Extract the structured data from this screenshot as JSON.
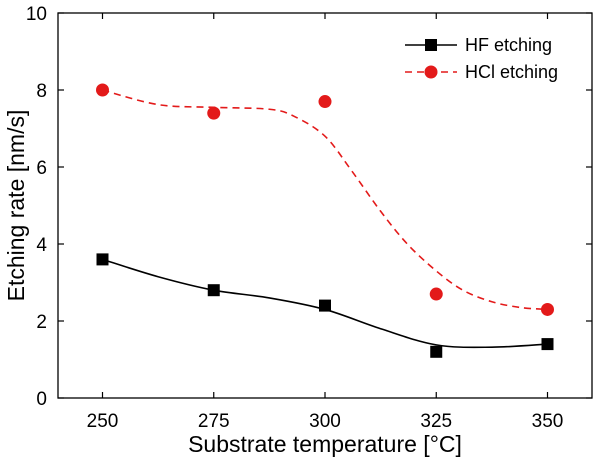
{
  "chart_data": {
    "type": "line",
    "title": "",
    "xlabel": "Substrate temperature [°C]",
    "ylabel": "Etching rate [nm/s]",
    "xlim": [
      240,
      360
    ],
    "ylim": [
      0,
      10
    ],
    "xticks": [
      250,
      275,
      300,
      325,
      350
    ],
    "yticks": [
      0,
      2,
      4,
      6,
      8,
      10
    ],
    "grid": false,
    "legend_position": "top-right",
    "series": [
      {
        "name": "HF etching",
        "color": "#000000",
        "marker": "square",
        "line_style": "solid",
        "x": [
          250,
          275,
          300,
          325,
          350
        ],
        "y": [
          3.6,
          2.8,
          2.4,
          1.2,
          1.4
        ],
        "fit_x": [
          250,
          262.5,
          275,
          287.5,
          300,
          312.5,
          325,
          337.5,
          350
        ],
        "fit_y": [
          3.6,
          3.15,
          2.8,
          2.6,
          2.3,
          1.8,
          1.38,
          1.32,
          1.4
        ]
      },
      {
        "name": "HCl etching",
        "color": "#e31a1a",
        "marker": "circle",
        "line_style": "dashed",
        "x": [
          250,
          275,
          300,
          325,
          350
        ],
        "y": [
          8.0,
          7.4,
          7.7,
          2.7,
          2.3
        ],
        "fit_x": [
          250,
          262.5,
          275,
          287.5,
          293,
          300,
          306,
          312.5,
          318.5,
          325,
          331,
          337.5,
          344,
          350
        ],
        "fit_y": [
          8.0,
          7.62,
          7.55,
          7.5,
          7.32,
          6.8,
          5.9,
          4.85,
          4.0,
          3.3,
          2.8,
          2.5,
          2.35,
          2.3
        ]
      }
    ]
  }
}
